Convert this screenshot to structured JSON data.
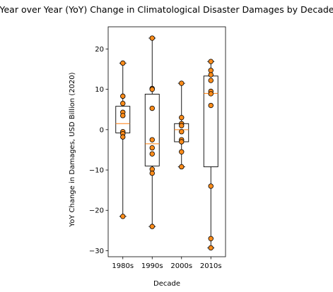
{
  "chart_data": {
    "type": "box",
    "title": "Year over Year (YoY) Change in Climatological Disaster Damages by Decade",
    "xlabel": "Decade",
    "ylabel": "YoY Change in Damages, USD Billion (2020)",
    "categories": [
      "1980s",
      "1990s",
      "2000s",
      "2010s"
    ],
    "ylim": [
      -31.5,
      25.5
    ],
    "yticks": [
      20,
      10,
      0,
      -10,
      -20,
      -30
    ],
    "ytick_labels": [
      "20",
      "10",
      "0",
      "−10",
      "−20",
      "−30"
    ],
    "grid": false,
    "boxes": [
      {
        "category": "1980s",
        "whisker_low": -21.5,
        "q1": -0.8,
        "median": 1.5,
        "q3": 5.8,
        "whisker_high": 16.5
      },
      {
        "category": "1990s",
        "whisker_low": -24.0,
        "q1": -9.0,
        "median": -3.5,
        "q3": 8.8,
        "whisker_high": 22.7
      },
      {
        "category": "2000s",
        "whisker_low": -9.2,
        "q1": -3.0,
        "median": 0.0,
        "q3": 1.5,
        "whisker_high": 11.5
      },
      {
        "category": "2010s",
        "whisker_low": -29.3,
        "q1": -9.2,
        "median": 9.0,
        "q3": 13.3,
        "whisker_high": 16.9
      }
    ],
    "points": [
      {
        "category": "1980s",
        "values": [
          16.5,
          8.3,
          6.5,
          4.3,
          3.5,
          -0.5,
          -1.0,
          -1.8,
          -21.5
        ]
      },
      {
        "category": "1990s",
        "values": [
          22.7,
          10.2,
          10.0,
          5.3,
          -2.5,
          -4.5,
          -6.0,
          -9.8,
          -10.8,
          -24.0
        ]
      },
      {
        "category": "2000s",
        "values": [
          11.5,
          3.0,
          1.5,
          1.0,
          -0.5,
          -2.5,
          -3.0,
          -5.5,
          -9.2
        ]
      },
      {
        "category": "2010s",
        "values": [
          16.9,
          14.7,
          13.6,
          12.2,
          9.5,
          8.9,
          6.0,
          -14.0,
          -27.0,
          -29.3
        ]
      }
    ],
    "colors": {
      "point_fill": "#ff8c1a",
      "point_edge": "#000000",
      "median": "#ff7f0e",
      "box_edge": "#000000"
    }
  }
}
